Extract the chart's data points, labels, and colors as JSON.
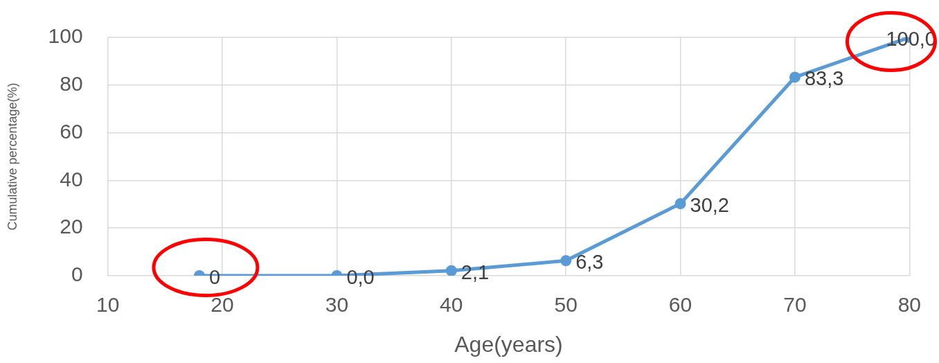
{
  "chart_data": {
    "type": "line",
    "xlabel": "Age(years)",
    "ylabel": "Cumulative percentage(%)",
    "x": [
      18,
      30,
      40,
      50,
      60,
      70,
      80
    ],
    "values": [
      0,
      0.0,
      2.1,
      6.3,
      30.2,
      83.3,
      100.0
    ],
    "value_labels": [
      "0",
      "0,0",
      "2,1",
      "6,3",
      "30,2",
      "83,3",
      "100,0"
    ],
    "color": "#5b9bd5",
    "xlim": [
      10,
      80
    ],
    "xticks": [
      10,
      20,
      30,
      40,
      50,
      60,
      70,
      80
    ],
    "ylim": [
      0,
      100
    ],
    "yticks": [
      0,
      20,
      40,
      60,
      80,
      100
    ],
    "grid": true,
    "marker": "circle",
    "line_style": "solid"
  }
}
